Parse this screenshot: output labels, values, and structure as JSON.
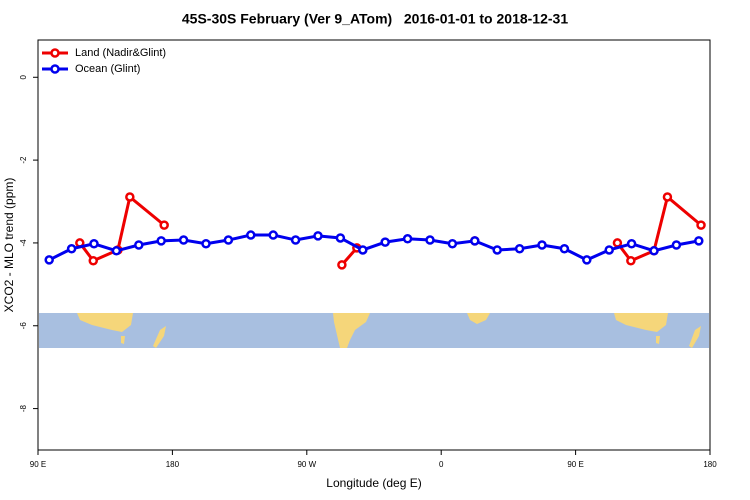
{
  "chart_data": {
    "type": "line",
    "title": "45S-30S February (Ver 9_ATom)   2016-01-01 to 2018-12-31",
    "x_label": "Longitude (deg E)",
    "y_label": "XCO2 - MLO trend (ppm)",
    "xlim": [
      90,
      540
    ],
    "xticks": [
      {
        "value": 90,
        "label": "90 E"
      },
      {
        "value": 180,
        "label": "180"
      },
      {
        "value": 270,
        "label": "90 W"
      },
      {
        "value": 360,
        "label": "0"
      },
      {
        "value": 450,
        "label": "90 E"
      },
      {
        "value": 540,
        "label": "180"
      }
    ],
    "ylim": [
      -9,
      0.9
    ],
    "yticks": [
      0,
      -2,
      -4,
      -6,
      -8
    ],
    "legend": "top-left",
    "series": [
      {
        "name": "Land (Nadir&Glint)",
        "color": "#ee0000",
        "x": [
          118,
          127,
          143.5,
          151.5,
          174.5,
          240,
          293.5,
          303.5,
          340,
          382.5,
          430,
          478,
          487,
          502.5,
          511.5,
          534
        ],
        "values": [
          -4.0,
          -4.43,
          -4.17,
          -2.89,
          -3.57,
          null,
          -4.53,
          -4.12,
          null,
          -3.95,
          null,
          -4.0,
          -4.43,
          -4.19,
          -2.89,
          -3.57
        ]
      },
      {
        "name": "Ocean (Glint)",
        "color": "#0000ee",
        "x": [
          97.5,
          112.5,
          127.5,
          142.5,
          157.5,
          172.5,
          187.5,
          202.5,
          217.5,
          232.5,
          247.5,
          262.5,
          277.5,
          292.5,
          307.5,
          322.5,
          337.5,
          352.5,
          367.5,
          382.5,
          397.5,
          412.5,
          427.5,
          442.5,
          457.5,
          472.5,
          487.5,
          502.5,
          517.5,
          532.5
        ],
        "values": [
          -4.41,
          -4.14,
          -4.02,
          -4.19,
          -4.05,
          -3.95,
          -3.93,
          -4.02,
          -3.93,
          -3.81,
          -3.81,
          -3.93,
          -3.83,
          -3.88,
          -4.17,
          -3.98,
          -3.9,
          -3.93,
          -4.02,
          -3.95,
          -4.17,
          -4.14,
          -4.05,
          -4.14,
          -4.41,
          -4.17,
          -4.02,
          -4.19,
          -4.05,
          -3.95
        ]
      }
    ]
  }
}
